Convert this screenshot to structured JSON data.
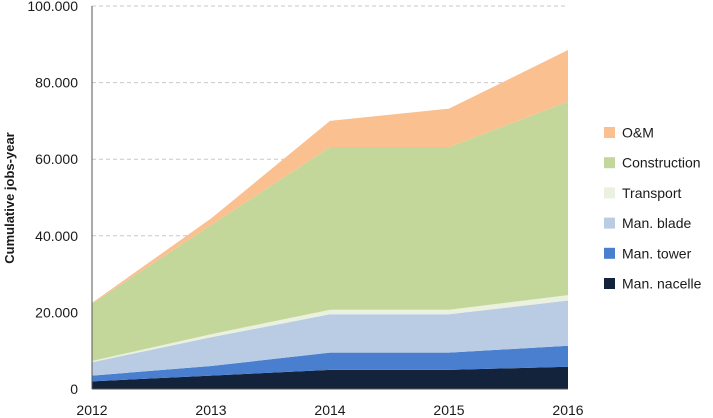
{
  "chart_data": {
    "type": "area",
    "stacked": true,
    "ylabel": "Cumulative jobs-year",
    "xlabel": "",
    "title": "",
    "x": [
      "2012",
      "2013",
      "2014",
      "2015",
      "2016"
    ],
    "ylim": [
      0,
      100000
    ],
    "y_ticks": [
      0,
      20000,
      40000,
      60000,
      80000,
      100000
    ],
    "y_tick_labels": [
      "0",
      "20.000",
      "40.000",
      "60.000",
      "80.000",
      "100.000"
    ],
    "grid": "horizontal dashed",
    "legend_position": "right",
    "series": [
      {
        "name": "Man. nacelle",
        "color": "#14233c",
        "values": [
          2000,
          3500,
          5000,
          5000,
          5800
        ]
      },
      {
        "name": "Man. tower",
        "color": "#4a7fd0",
        "values": [
          1500,
          2500,
          4500,
          4500,
          5500
        ]
      },
      {
        "name": "Man. blade",
        "color": "#b9cce4",
        "values": [
          3500,
          7500,
          10000,
          10000,
          11800
        ]
      },
      {
        "name": "Transport",
        "color": "#eaf1de",
        "values": [
          300,
          800,
          1200,
          1200,
          1400
        ]
      },
      {
        "name": "Construction",
        "color": "#c4d79b",
        "values": [
          15000,
          28500,
          42500,
          42500,
          50500
        ]
      },
      {
        "name": "O&M",
        "color": "#fac090",
        "values": [
          200,
          1700,
          6800,
          10000,
          13500
        ]
      }
    ]
  }
}
